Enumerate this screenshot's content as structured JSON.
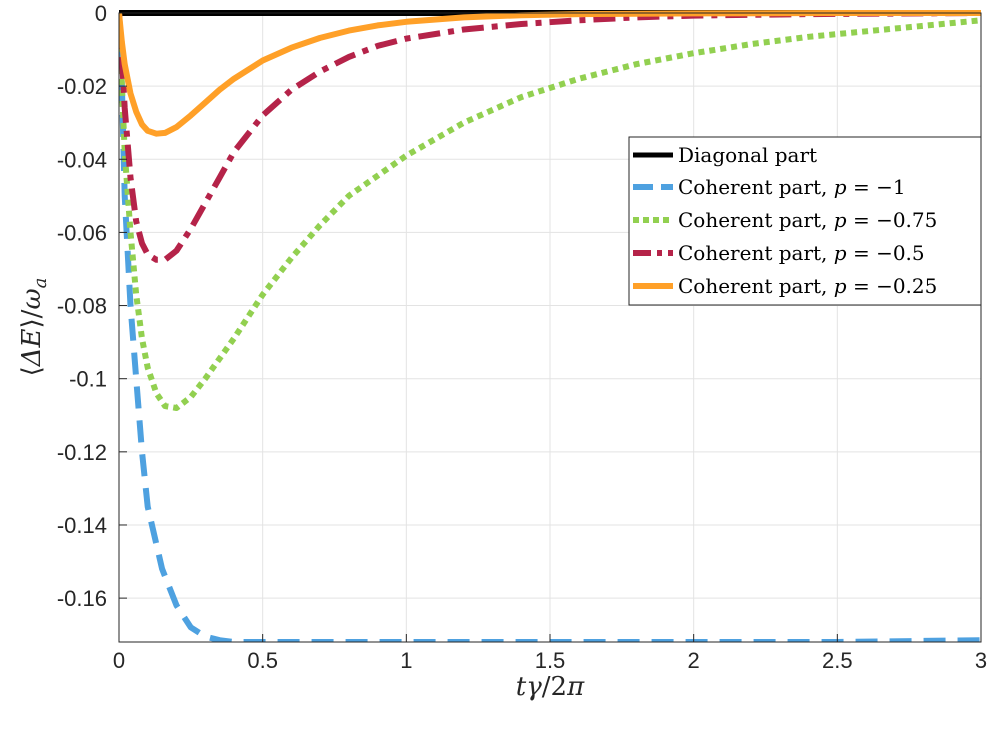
{
  "chart_data": {
    "type": "line",
    "xlabel": "tγ/2π",
    "ylabel": "⟨ΔE⟩/ω_a",
    "xlim": [
      0,
      3
    ],
    "ylim": [
      -0.172,
      0
    ],
    "grid": true,
    "legend_position": "right",
    "x_ticks": [
      {
        "value": 0,
        "label": "0"
      },
      {
        "value": 0.5,
        "label": "0.5"
      },
      {
        "value": 1,
        "label": "1"
      },
      {
        "value": 1.5,
        "label": "1.5"
      },
      {
        "value": 2,
        "label": "2"
      },
      {
        "value": 2.5,
        "label": "2.5"
      },
      {
        "value": 3,
        "label": "3"
      }
    ],
    "y_ticks": [
      {
        "value": 0,
        "label": "0"
      },
      {
        "value": -0.02,
        "label": "-0.02"
      },
      {
        "value": -0.04,
        "label": "-0.04"
      },
      {
        "value": -0.06,
        "label": "-0.06"
      },
      {
        "value": -0.08,
        "label": "-0.08"
      },
      {
        "value": -0.1,
        "label": "-0.1"
      },
      {
        "value": -0.12,
        "label": "-0.12"
      },
      {
        "value": -0.14,
        "label": "-0.14"
      },
      {
        "value": -0.16,
        "label": "-0.16"
      }
    ],
    "series": [
      {
        "name": "Diagonal part",
        "color": "#000000",
        "dash": "solid",
        "x": [
          0,
          0.5,
          1,
          1.5,
          2,
          2.5,
          3
        ],
        "y": [
          0,
          0,
          0,
          0,
          0,
          0,
          0
        ]
      },
      {
        "name": "Coherent part, p = −1",
        "color": "#4ea1e0",
        "dash": "dashed",
        "x": [
          0,
          0.01,
          0.02,
          0.04,
          0.06,
          0.08,
          0.1,
          0.15,
          0.2,
          0.25,
          0.3,
          0.35,
          0.4,
          0.5,
          0.7,
          1.0,
          1.5,
          2.0,
          2.5,
          3.0
        ],
        "y": [
          0,
          -0.02,
          -0.05,
          -0.08,
          -0.1,
          -0.12,
          -0.135,
          -0.152,
          -0.162,
          -0.168,
          -0.1705,
          -0.1715,
          -0.172,
          -0.172,
          -0.172,
          -0.172,
          -0.172,
          -0.172,
          -0.172,
          -0.1715
        ]
      },
      {
        "name": "Coherent part, p = −0.75",
        "color": "#92d050",
        "dash": "dotted",
        "x": [
          0,
          0.01,
          0.02,
          0.04,
          0.06,
          0.08,
          0.1,
          0.13,
          0.16,
          0.2,
          0.25,
          0.3,
          0.4,
          0.5,
          0.6,
          0.7,
          0.8,
          1.0,
          1.2,
          1.4,
          1.6,
          1.8,
          2.0,
          2.2,
          2.4,
          2.6,
          2.8,
          3.0
        ],
        "y": [
          0,
          -0.02,
          -0.038,
          -0.06,
          -0.077,
          -0.089,
          -0.097,
          -0.104,
          -0.1075,
          -0.108,
          -0.105,
          -0.1,
          -0.089,
          -0.077,
          -0.067,
          -0.058,
          -0.05,
          -0.039,
          -0.03,
          -0.023,
          -0.018,
          -0.014,
          -0.011,
          -0.0085,
          -0.0065,
          -0.005,
          -0.0035,
          -0.002
        ]
      },
      {
        "name": "Coherent part, p = −0.5",
        "color": "#b52349",
        "dash": "dashdot",
        "x": [
          0,
          0.01,
          0.02,
          0.04,
          0.06,
          0.08,
          0.1,
          0.13,
          0.16,
          0.2,
          0.25,
          0.3,
          0.35,
          0.4,
          0.5,
          0.6,
          0.7,
          0.8,
          0.9,
          1.0,
          1.2,
          1.4,
          1.6,
          1.8,
          2.0,
          2.4,
          2.8,
          3.0
        ],
        "y": [
          0,
          -0.012,
          -0.026,
          -0.045,
          -0.057,
          -0.063,
          -0.066,
          -0.0675,
          -0.0675,
          -0.065,
          -0.059,
          -0.052,
          -0.045,
          -0.038,
          -0.028,
          -0.021,
          -0.016,
          -0.012,
          -0.009,
          -0.007,
          -0.0045,
          -0.003,
          -0.002,
          -0.0012,
          -0.0007,
          -0.0003,
          -0.0001,
          0
        ]
      },
      {
        "name": "Coherent part, p = −0.25",
        "color": "#ffa028",
        "dash": "solid",
        "x": [
          0,
          0.01,
          0.02,
          0.04,
          0.06,
          0.08,
          0.1,
          0.13,
          0.16,
          0.2,
          0.25,
          0.3,
          0.35,
          0.4,
          0.5,
          0.6,
          0.7,
          0.8,
          0.9,
          1.0,
          1.2,
          1.4,
          1.6,
          2.0,
          2.5,
          3.0
        ],
        "y": [
          0,
          -0.008,
          -0.014,
          -0.022,
          -0.027,
          -0.0305,
          -0.0322,
          -0.033,
          -0.0328,
          -0.0312,
          -0.028,
          -0.0245,
          -0.021,
          -0.018,
          -0.013,
          -0.0095,
          -0.0068,
          -0.0048,
          -0.0034,
          -0.0024,
          -0.0012,
          -0.0006,
          -0.0003,
          -0.0001,
          0,
          0
        ]
      }
    ]
  },
  "legend": {
    "items": [
      {
        "prefix": "Diagonal part",
        "var": "",
        "value": ""
      },
      {
        "prefix": "Coherent part, ",
        "var": "p",
        "value": " = −1"
      },
      {
        "prefix": "Coherent part, ",
        "var": "p",
        "value": " = −0.75"
      },
      {
        "prefix": "Coherent part, ",
        "var": "p",
        "value": " = −0.5"
      },
      {
        "prefix": "Coherent part, ",
        "var": "p",
        "value": " = −0.25"
      }
    ]
  },
  "axes_labels": {
    "x": {
      "t": "t",
      "gamma": "γ",
      "rest": "/2",
      "pi": "π"
    },
    "y": {
      "open": "⟨",
      "delta_e": "ΔE",
      "close": "⟩",
      "slash": "/",
      "omega": "ω",
      "sub": "a"
    }
  }
}
